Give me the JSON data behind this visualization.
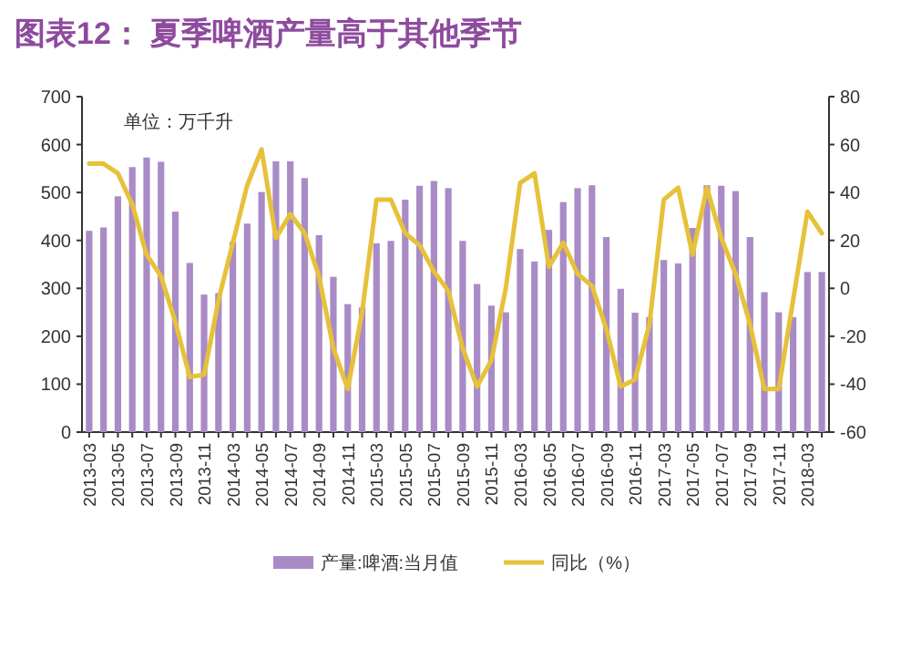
{
  "chart_data": {
    "type": "bar",
    "title": "图表12：  夏季啤酒产量高于其他季节",
    "annotations": [
      "单位：万千升"
    ],
    "categories": [
      "2013-03",
      null,
      "2013-05",
      null,
      "2013-07",
      null,
      "2013-09",
      null,
      "2013-11",
      null,
      "2014-03",
      null,
      "2014-05",
      null,
      "2014-07",
      null,
      "2014-09",
      null,
      "2014-11",
      null,
      "2015-03",
      null,
      "2015-05",
      null,
      "2015-07",
      null,
      "2015-09",
      null,
      "2015-11",
      null,
      "2016-03",
      null,
      "2016-05",
      null,
      "2016-07",
      null,
      "2016-09",
      null,
      "2016-11",
      null,
      "2017-03",
      null,
      "2017-05",
      null,
      "2017-07",
      null,
      "2017-09",
      null,
      "2017-11",
      null,
      "2018-03",
      null
    ],
    "series": [
      {
        "name": "产量:啤酒:当月值",
        "color": "#a98bc6",
        "values": [
          420,
          427,
          492,
          553,
          573,
          564,
          460,
          353,
          287,
          290,
          397,
          435,
          501,
          565,
          565,
          530,
          411,
          324,
          267,
          260,
          394,
          399,
          485,
          514,
          524,
          509,
          399,
          309,
          264,
          250,
          382,
          356,
          422,
          480,
          509,
          515,
          407,
          299,
          249,
          240,
          359,
          352,
          426,
          515,
          514,
          503,
          407,
          292,
          250,
          240,
          334,
          334
        ]
      },
      {
        "name": "同比（%）",
        "type": "line",
        "axis": "y2",
        "color": "#e6c13a",
        "values": [
          52,
          52,
          48,
          35,
          14,
          5,
          -14,
          -37,
          -36,
          -5,
          19,
          43,
          58,
          21,
          31,
          23,
          5,
          -25,
          -42,
          -10,
          37,
          37,
          23,
          18,
          7,
          -1,
          -25,
          -41,
          -30,
          0,
          44,
          48,
          9,
          19,
          6,
          1,
          -17,
          -41,
          -38,
          -15,
          37,
          42,
          14,
          42,
          21,
          6,
          -15,
          -42,
          -42,
          -5,
          32,
          23
        ]
      }
    ],
    "ylim": [
      0,
      700
    ],
    "yticks": [
      0,
      100,
      200,
      300,
      400,
      500,
      600,
      700
    ],
    "y2lim": [
      -60,
      80
    ],
    "y2ticks": [
      -60,
      -40,
      -20,
      0,
      20,
      40,
      60,
      80
    ],
    "grid": false,
    "legend": "bottom"
  }
}
